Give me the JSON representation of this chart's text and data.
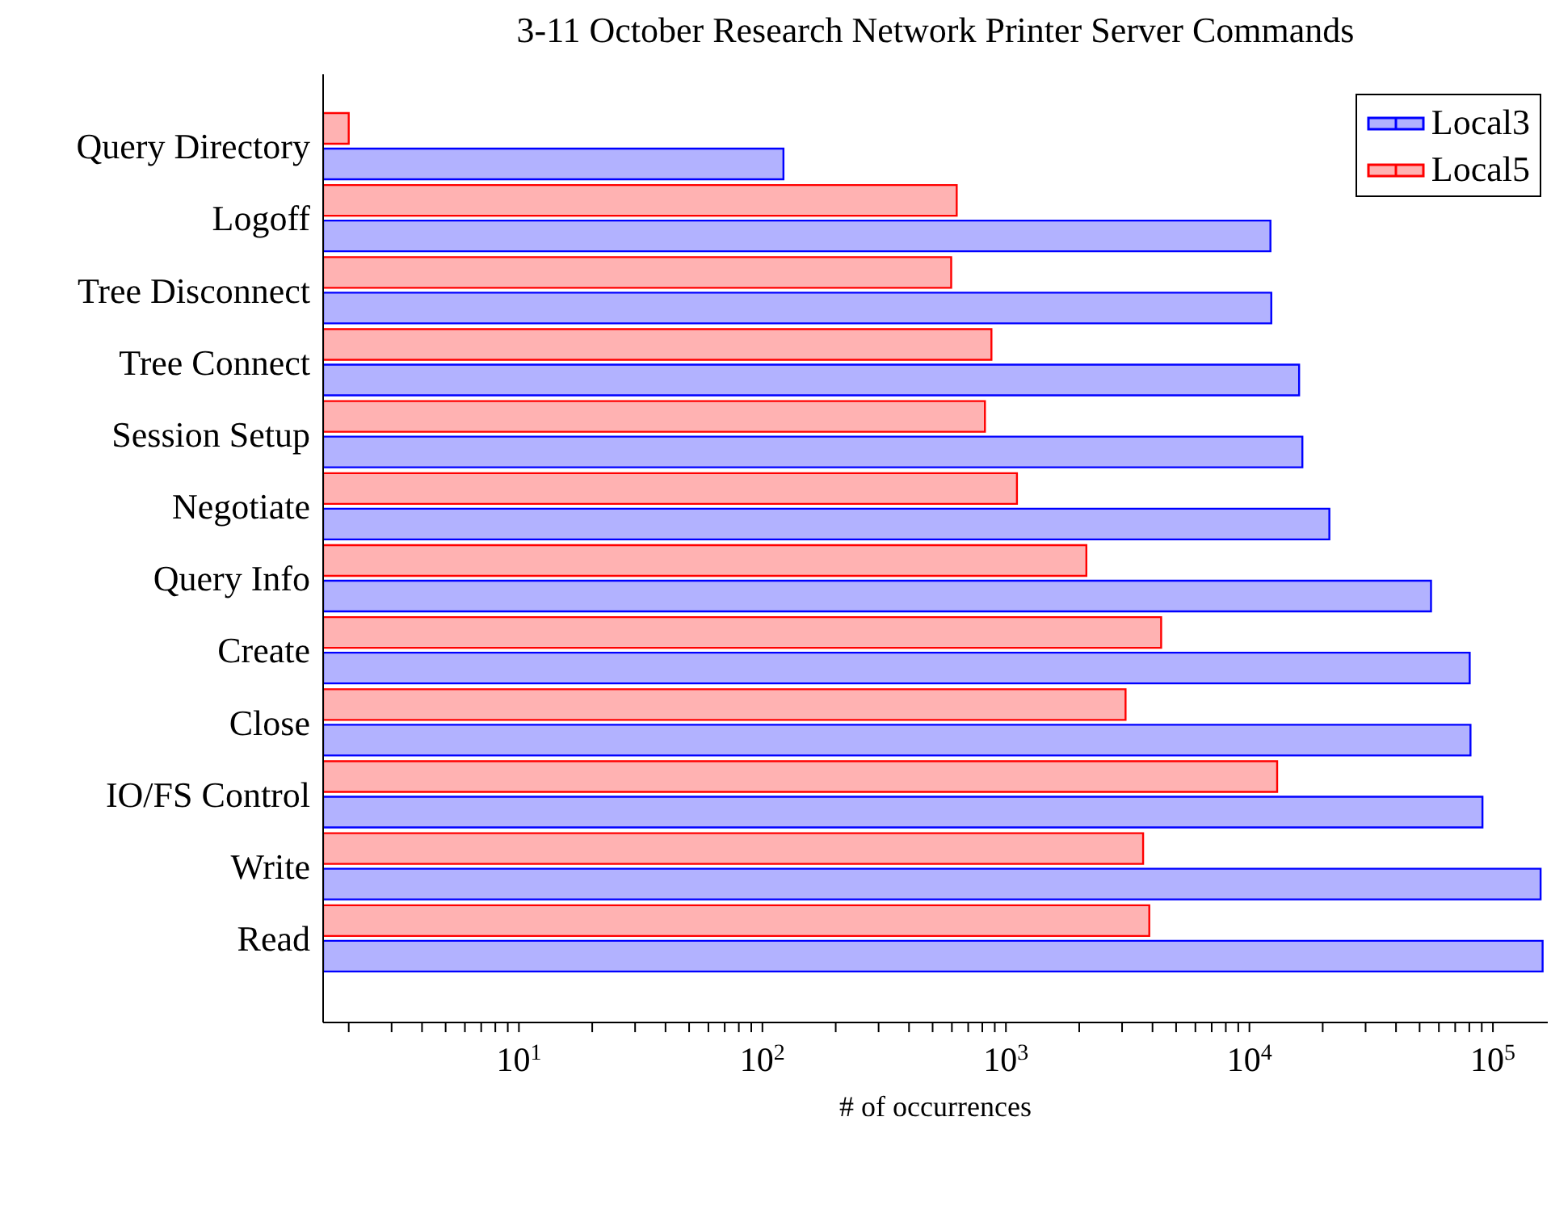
{
  "chart_data": {
    "type": "bar",
    "orientation": "horizontal",
    "title": "3-11 October Research Network Printer Server Commands",
    "xlabel": "# of occurrences",
    "log": "x",
    "legend": "top right",
    "categories": [
      "Query Directory",
      "Logoff",
      "Tree Disconnect",
      "Tree Connect",
      "Session Setup",
      "Negotiate",
      "Query Info",
      "Create",
      "Close",
      "IO/FS Control",
      "Write",
      "Read"
    ],
    "series": [
      {
        "name": "Local3",
        "color": "#0000ff",
        "values": [
          122,
          12200,
          12300,
          16000,
          16500,
          21300,
          55700,
          80300,
          80900,
          90600,
          157000,
          160000
        ]
      },
      {
        "name": "Local5",
        "color": "#ff0000",
        "values": [
          2,
          628,
          596,
          872,
          820,
          1110,
          2140,
          4340,
          3100,
          13000,
          3660,
          3880
        ]
      }
    ],
    "xlim": [
      1.57,
      168000
    ],
    "xticks": [
      {
        "value": 2,
        "label": null
      },
      {
        "value": 3,
        "label": null
      },
      {
        "value": 4,
        "label": null
      },
      {
        "value": 5,
        "label": null
      },
      {
        "value": 6,
        "label": null
      },
      {
        "value": 7,
        "label": null
      },
      {
        "value": 8,
        "label": null
      },
      {
        "value": 9,
        "label": null
      },
      {
        "value": 10,
        "label": "10$^{1}$"
      },
      {
        "value": 20,
        "label": null
      },
      {
        "value": 30,
        "label": null
      },
      {
        "value": 40,
        "label": null
      },
      {
        "value": 50,
        "label": null
      },
      {
        "value": 60,
        "label": null
      },
      {
        "value": 70,
        "label": null
      },
      {
        "value": 80,
        "label": null
      },
      {
        "value": 90,
        "label": null
      },
      {
        "value": 100,
        "label": "10$^{2}$"
      },
      {
        "value": 200,
        "label": null
      },
      {
        "value": 300,
        "label": null
      },
      {
        "value": 400,
        "label": null
      },
      {
        "value": 500,
        "label": null
      },
      {
        "value": 600,
        "label": null
      },
      {
        "value": 700,
        "label": null
      },
      {
        "value": 800,
        "label": null
      },
      {
        "value": 900,
        "label": null
      },
      {
        "value": 1000,
        "label": "10$^{3}$"
      },
      {
        "value": 2000,
        "label": null
      },
      {
        "value": 3000,
        "label": null
      },
      {
        "value": 4000,
        "label": null
      },
      {
        "value": 5000,
        "label": null
      },
      {
        "value": 6000,
        "label": null
      },
      {
        "value": 7000,
        "label": null
      },
      {
        "value": 8000,
        "label": null
      },
      {
        "value": 9000,
        "label": null
      },
      {
        "value": 10000,
        "label": "10$^{4}$"
      },
      {
        "value": 20000,
        "label": null
      },
      {
        "value": 30000,
        "label": null
      },
      {
        "value": 40000,
        "label": null
      },
      {
        "value": 50000,
        "label": null
      },
      {
        "value": 60000,
        "label": null
      },
      {
        "value": 70000,
        "label": null
      },
      {
        "value": 80000,
        "label": null
      },
      {
        "value": 90000,
        "label": null
      },
      {
        "value": 100000,
        "label": "10$^{5}$"
      }
    ]
  }
}
